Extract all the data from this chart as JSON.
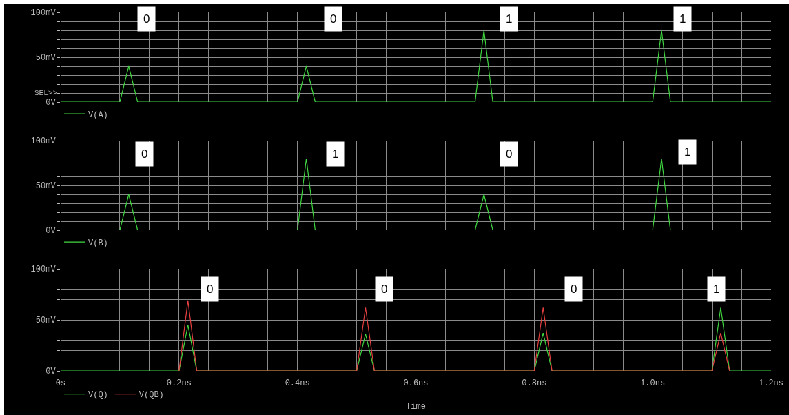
{
  "chart_data": [
    {
      "type": "line",
      "xlim": [
        0,
        1.2
      ],
      "ylim": [
        0,
        100
      ],
      "grid": true,
      "legend": "bottom left",
      "tick_labels": "y",
      "xticks": [
        {
          "value": 0,
          "label": null
        },
        {
          "value": 0.05,
          "label": null
        },
        {
          "value": 0.1,
          "label": null
        },
        {
          "value": 0.15,
          "label": null
        },
        {
          "value": 0.2,
          "label": null
        },
        {
          "value": 0.25,
          "label": null
        },
        {
          "value": 0.3,
          "label": null
        },
        {
          "value": 0.35,
          "label": null
        },
        {
          "value": 0.4,
          "label": null
        },
        {
          "value": 0.45,
          "label": null
        },
        {
          "value": 0.5,
          "label": null
        },
        {
          "value": 0.55,
          "label": null
        },
        {
          "value": 0.6,
          "label": null
        },
        {
          "value": 0.65,
          "label": null
        },
        {
          "value": 0.7,
          "label": null
        },
        {
          "value": 0.75,
          "label": null
        },
        {
          "value": 0.8,
          "label": null
        },
        {
          "value": 0.85,
          "label": null
        },
        {
          "value": 0.9,
          "label": null
        },
        {
          "value": 0.95,
          "label": null
        },
        {
          "value": 1.0,
          "label": null
        },
        {
          "value": 1.05,
          "label": null
        },
        {
          "value": 1.1,
          "label": null
        },
        {
          "value": 1.15,
          "label": null
        },
        {
          "value": 1.2,
          "label": null
        }
      ],
      "yticks": [
        {
          "value": 0,
          "label": "0V"
        },
        {
          "value": 10,
          "label": null
        },
        {
          "value": 20,
          "label": null
        },
        {
          "value": 30,
          "label": null
        },
        {
          "value": 40,
          "label": null
        },
        {
          "value": 50,
          "label": "50mV"
        },
        {
          "value": 60,
          "label": null
        },
        {
          "value": 70,
          "label": null
        },
        {
          "value": 80,
          "label": null
        },
        {
          "value": 90,
          "label": null
        },
        {
          "value": 100,
          "label": "100mV"
        }
      ],
      "x": [
        0,
        0.1,
        0.115,
        0.13,
        0.4,
        0.415,
        0.43,
        0.7,
        0.715,
        0.73,
        1.0,
        1.015,
        1.03,
        1.2
      ],
      "series": [
        {
          "name": "V(A)",
          "color": "#40d840",
          "values": [
            0,
            0,
            40,
            0,
            0,
            40,
            0,
            0,
            80,
            0,
            0,
            80,
            0,
            0
          ]
        }
      ],
      "annotations": [
        {
          "text": "0",
          "x": 0.145,
          "y": 93
        },
        {
          "text": "0",
          "x": 0.46,
          "y": 93
        },
        {
          "text": "1",
          "x": 0.757,
          "y": 93
        },
        {
          "text": "1",
          "x": 1.05,
          "y": 93
        },
        "SEL>>"
      ]
    },
    {
      "type": "line",
      "xlim": [
        0,
        1.2
      ],
      "ylim": [
        0,
        100
      ],
      "grid": true,
      "legend": "bottom left",
      "tick_labels": "y",
      "xticks": [
        {
          "value": 0,
          "label": null
        },
        {
          "value": 0.05,
          "label": null
        },
        {
          "value": 0.1,
          "label": null
        },
        {
          "value": 0.15,
          "label": null
        },
        {
          "value": 0.2,
          "label": null
        },
        {
          "value": 0.25,
          "label": null
        },
        {
          "value": 0.3,
          "label": null
        },
        {
          "value": 0.35,
          "label": null
        },
        {
          "value": 0.4,
          "label": null
        },
        {
          "value": 0.45,
          "label": null
        },
        {
          "value": 0.5,
          "label": null
        },
        {
          "value": 0.55,
          "label": null
        },
        {
          "value": 0.6,
          "label": null
        },
        {
          "value": 0.65,
          "label": null
        },
        {
          "value": 0.7,
          "label": null
        },
        {
          "value": 0.75,
          "label": null
        },
        {
          "value": 0.8,
          "label": null
        },
        {
          "value": 0.85,
          "label": null
        },
        {
          "value": 0.9,
          "label": null
        },
        {
          "value": 0.95,
          "label": null
        },
        {
          "value": 1.0,
          "label": null
        },
        {
          "value": 1.05,
          "label": null
        },
        {
          "value": 1.1,
          "label": null
        },
        {
          "value": 1.15,
          "label": null
        },
        {
          "value": 1.2,
          "label": null
        }
      ],
      "yticks": [
        {
          "value": 0,
          "label": "0V"
        },
        {
          "value": 10,
          "label": null
        },
        {
          "value": 20,
          "label": null
        },
        {
          "value": 30,
          "label": null
        },
        {
          "value": 40,
          "label": null
        },
        {
          "value": 50,
          "label": "50mV"
        },
        {
          "value": 60,
          "label": null
        },
        {
          "value": 70,
          "label": null
        },
        {
          "value": 80,
          "label": null
        },
        {
          "value": 90,
          "label": null
        },
        {
          "value": 100,
          "label": "100mV"
        }
      ],
      "x": [
        0,
        0.1,
        0.115,
        0.13,
        0.4,
        0.415,
        0.43,
        0.7,
        0.715,
        0.73,
        1.0,
        1.015,
        1.03,
        1.2
      ],
      "series": [
        {
          "name": "V(B)",
          "color": "#40d840",
          "values": [
            0,
            0,
            40,
            0,
            0,
            80,
            0,
            0,
            40,
            0,
            0,
            80,
            0,
            0
          ]
        }
      ],
      "annotations": [
        {
          "text": "0",
          "x": 0.141,
          "y": 85
        },
        {
          "text": "1",
          "x": 0.464,
          "y": 85
        },
        {
          "text": "0",
          "x": 0.757,
          "y": 85
        },
        {
          "text": "1",
          "x": 1.059,
          "y": 87
        }
      ]
    },
    {
      "type": "line",
      "xlim": [
        0,
        1.2
      ],
      "ylim": [
        0,
        100
      ],
      "grid": true,
      "legend": "bottom left",
      "xlabel": "Time",
      "xticks": [
        {
          "value": 0,
          "label": "0s"
        },
        {
          "value": 0.05,
          "label": null
        },
        {
          "value": 0.1,
          "label": null
        },
        {
          "value": 0.15,
          "label": null
        },
        {
          "value": 0.2,
          "label": "0.2ns"
        },
        {
          "value": 0.25,
          "label": null
        },
        {
          "value": 0.3,
          "label": null
        },
        {
          "value": 0.35,
          "label": null
        },
        {
          "value": 0.4,
          "label": "0.4ns"
        },
        {
          "value": 0.45,
          "label": null
        },
        {
          "value": 0.5,
          "label": null
        },
        {
          "value": 0.55,
          "label": null
        },
        {
          "value": 0.6,
          "label": "0.6ns"
        },
        {
          "value": 0.65,
          "label": null
        },
        {
          "value": 0.7,
          "label": null
        },
        {
          "value": 0.75,
          "label": null
        },
        {
          "value": 0.8,
          "label": "0.8ns"
        },
        {
          "value": 0.85,
          "label": null
        },
        {
          "value": 0.9,
          "label": null
        },
        {
          "value": 0.95,
          "label": null
        },
        {
          "value": 1.0,
          "label": "1.0ns"
        },
        {
          "value": 1.05,
          "label": null
        },
        {
          "value": 1.1,
          "label": null
        },
        {
          "value": 1.15,
          "label": null
        },
        {
          "value": 1.2,
          "label": "1.2ns"
        }
      ],
      "yticks": [
        {
          "value": 0,
          "label": "0V"
        },
        {
          "value": 10,
          "label": null
        },
        {
          "value": 20,
          "label": null
        },
        {
          "value": 30,
          "label": null
        },
        {
          "value": 40,
          "label": null
        },
        {
          "value": 50,
          "label": "50mV"
        },
        {
          "value": 60,
          "label": null
        },
        {
          "value": 70,
          "label": null
        },
        {
          "value": 80,
          "label": null
        },
        {
          "value": 90,
          "label": null
        },
        {
          "value": 100,
          "label": "100mV"
        }
      ],
      "x": [
        0,
        0.2,
        0.215,
        0.23,
        0.5,
        0.515,
        0.53,
        0.8,
        0.815,
        0.83,
        1.1,
        1.115,
        1.13,
        1.2
      ],
      "series": [
        {
          "name": "V(Q)",
          "color": "#40d840",
          "values": [
            0,
            0,
            45,
            0,
            0,
            36,
            0,
            0,
            37,
            0,
            0,
            62,
            0,
            0
          ]
        },
        {
          "name": "V(QB)",
          "color": "#e84040",
          "x": [
            0.2,
            0.215,
            0.23,
            0.5,
            0.515,
            0.53,
            0.8,
            0.815,
            0.83,
            1.1,
            1.115,
            1.13
          ],
          "values": [
            0,
            69,
            0,
            0,
            62,
            0,
            0,
            62,
            0,
            0,
            37,
            0
          ]
        }
      ],
      "annotations": [
        {
          "text": "0",
          "x": 0.252,
          "y": 80
        },
        {
          "text": "0",
          "x": 0.546,
          "y": 80
        },
        {
          "text": "0",
          "x": 0.867,
          "y": 80
        },
        {
          "text": "1",
          "x": 1.108,
          "y": 80
        }
      ]
    }
  ]
}
